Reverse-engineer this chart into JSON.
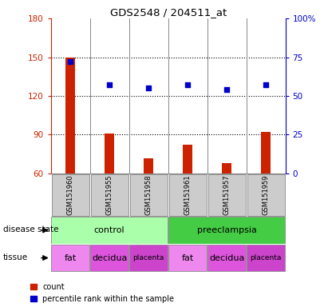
{
  "title": "GDS2548 / 204511_at",
  "samples": [
    "GSM151960",
    "GSM151955",
    "GSM151958",
    "GSM151961",
    "GSM151957",
    "GSM151959"
  ],
  "bar_values": [
    150,
    91,
    72,
    82,
    68,
    92
  ],
  "bar_bottom": 60,
  "percentile_values": [
    72,
    57,
    55,
    57,
    54,
    57
  ],
  "ylim_left": [
    60,
    180
  ],
  "ylim_right": [
    0,
    100
  ],
  "yticks_left": [
    60,
    90,
    120,
    150,
    180
  ],
  "yticks_right": [
    0,
    25,
    50,
    75,
    100
  ],
  "bar_color": "#cc2200",
  "dot_color": "#0000cc",
  "disease_state_groups": [
    {
      "label": "control",
      "span": [
        0,
        3
      ],
      "color": "#aaffaa"
    },
    {
      "label": "preeclampsia",
      "span": [
        3,
        6
      ],
      "color": "#44cc44"
    }
  ],
  "tissue_groups": [
    {
      "label": "fat",
      "span": [
        0,
        1
      ],
      "color": "#ee88ee"
    },
    {
      "label": "decidua",
      "span": [
        1,
        2
      ],
      "color": "#dd55dd"
    },
    {
      "label": "placenta",
      "span": [
        2,
        3
      ],
      "color": "#cc44cc"
    },
    {
      "label": "fat",
      "span": [
        3,
        4
      ],
      "color": "#ee88ee"
    },
    {
      "label": "decidua",
      "span": [
        4,
        5
      ],
      "color": "#dd55dd"
    },
    {
      "label": "placenta",
      "span": [
        5,
        6
      ],
      "color": "#cc44cc"
    }
  ],
  "label_row1": "disease state",
  "label_row2": "tissue",
  "sample_box_color": "#cccccc",
  "plot_bg": "#ffffff",
  "spine_color": "#888888"
}
